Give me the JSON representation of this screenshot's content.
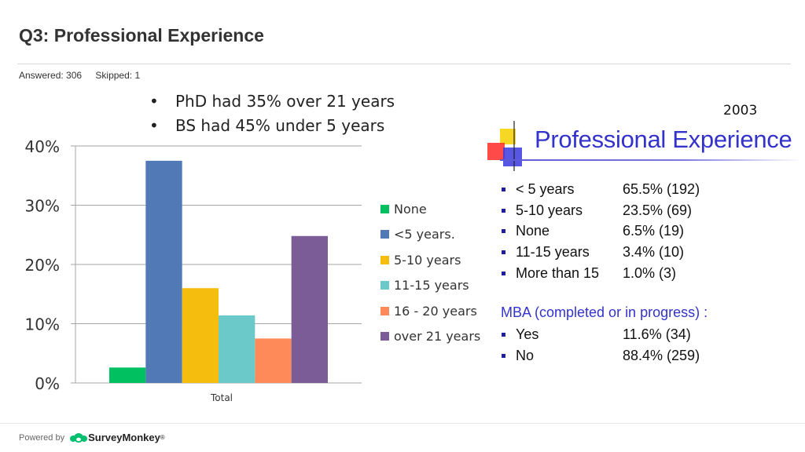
{
  "header": {
    "title": "Q3: Professional Experience",
    "answered": "Answered: 306",
    "skipped": "Skipped: 1"
  },
  "bullets": [
    "PhD had 35% over 21 years",
    "BS had 45% under 5 years"
  ],
  "chart_data": {
    "type": "bar",
    "categories": [
      "Total"
    ],
    "series": [
      {
        "name": "None",
        "values": [
          2.6
        ],
        "color": "#00c060"
      },
      {
        "name": "<5 years.",
        "values": [
          37.5
        ],
        "color": "#5079b6"
      },
      {
        "name": "5-10 years",
        "values": [
          16.0
        ],
        "color": "#f5be0f"
      },
      {
        "name": "11-15 years",
        "values": [
          11.4
        ],
        "color": "#6bcac9"
      },
      {
        "name": "16 - 20 years",
        "values": [
          7.5
        ],
        "color": "#fd8a58"
      },
      {
        "name": "over 21 years",
        "values": [
          24.8
        ],
        "color": "#7b5c96"
      }
    ],
    "yticks": [
      "0%",
      "10%",
      "20%",
      "30%",
      "40%"
    ],
    "ylim": [
      0,
      40
    ],
    "grid": true,
    "legend_position": "right"
  },
  "pe": {
    "year": "2003",
    "title": "Professional Experience",
    "rows": [
      {
        "label": "< 5 years",
        "value": "65.5%  (192)"
      },
      {
        "label": "5-10 years",
        "value": "23.5%  (69)"
      },
      {
        "label": "None",
        "value": "6.5%    (19)"
      },
      {
        "label": "11-15 years",
        "value": "3.4%    (10)"
      },
      {
        "label": "More than 15",
        "value": "1.0%    (3)"
      }
    ],
    "mba_heading": "MBA (completed or in progress) :",
    "mba_rows": [
      {
        "label": "Yes",
        "value": "11.6%  (34)"
      },
      {
        "label": "No",
        "value": "88.4%  (259)"
      }
    ]
  },
  "footer": {
    "powered": "Powered by",
    "brand": "SurveyMonkey",
    "brand_mark": "®"
  }
}
